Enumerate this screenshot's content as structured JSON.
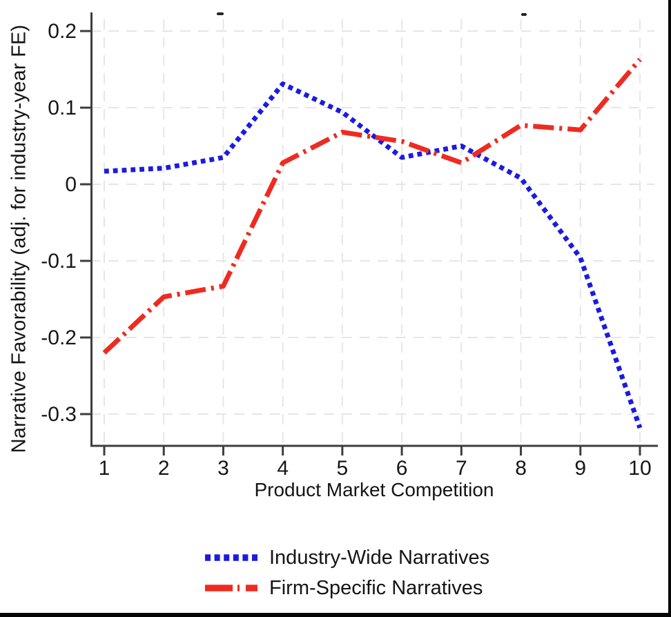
{
  "figure": {
    "kind": "line chart",
    "background": "#ffffff",
    "frame_border_color": "#050505"
  },
  "colors": {
    "industry_wide": "#1b1be0",
    "firm_specific": "#ee2b21",
    "gridline": "#e6e6e6",
    "axis": "#3d3d3d",
    "text": "#161616"
  },
  "y_axis": {
    "title": "Narrative Favorability (adj. for industry-year FE)",
    "tick_labels": [
      "0.2",
      "0.1",
      "0",
      "-0.1",
      "-0.2",
      "-0.3"
    ],
    "tick_values": [
      0.2,
      0.1,
      0,
      -0.1,
      -0.2,
      -0.3
    ]
  },
  "x_axis": {
    "title": "Product Market Competition",
    "tick_labels": [
      "1",
      "2",
      "3",
      "4",
      "5",
      "6",
      "7",
      "8",
      "9",
      "10"
    ],
    "tick_values": [
      1,
      2,
      3,
      4,
      5,
      6,
      7,
      8,
      9,
      10
    ]
  },
  "legend": {
    "items": [
      {
        "label": "Industry-Wide Narratives",
        "color": "#1b1be0",
        "pattern": "dotted"
      },
      {
        "label": "Firm-Specific Narratives",
        "color": "#ee2b21",
        "pattern": "dash-dot"
      }
    ]
  },
  "chart_data": {
    "type": "line",
    "x": [
      1,
      2,
      3,
      4,
      5,
      6,
      7,
      8,
      9,
      10
    ],
    "series": [
      {
        "name": "Industry-Wide Narratives",
        "color": "#1b1be0",
        "line_style": "dotted",
        "values": [
          0.017,
          0.021,
          0.035,
          0.131,
          0.094,
          0.035,
          0.05,
          0.008,
          -0.096,
          -0.318
        ]
      },
      {
        "name": "Firm-Specific Narratives",
        "color": "#ee2b21",
        "line_style": "dash-dot",
        "values": [
          -0.22,
          -0.147,
          -0.133,
          0.028,
          0.068,
          0.056,
          0.028,
          0.077,
          0.071,
          0.163
        ]
      }
    ],
    "title": "",
    "xlabel": "Product Market Competition",
    "ylabel": "Narrative Favorability (adj. for industry-year FE)",
    "xlim": [
      1,
      10
    ],
    "ylim": [
      -0.35,
      0.22
    ],
    "grid": true,
    "gridline_style": "dashed",
    "legend_position": "bottom-center"
  }
}
